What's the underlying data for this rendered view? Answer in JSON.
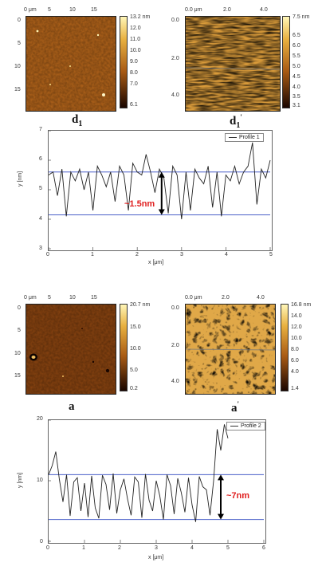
{
  "colors": {
    "afm_dark": "#2a0d00",
    "afm_mid": "#b06418",
    "afm_light": "#f6d060",
    "profile_line": "#222222",
    "ref_line": "#4a5fc8",
    "annotation": "#e02020"
  },
  "panels": {
    "d1": {
      "label_main": "d",
      "label_sub": "1",
      "x_ticks": [
        "0 μm",
        "5",
        "10",
        "15"
      ],
      "y_ticks": [
        "0",
        "5",
        "10",
        "15"
      ],
      "colorbar": [
        "13.2 nm",
        "12.0",
        "11.0",
        "10.0",
        "9.0",
        "8.0",
        "7.0",
        "6.1"
      ]
    },
    "d1p": {
      "label_main": "d",
      "label_sub": "1",
      "label_sup": "'",
      "x_ticks": [
        "0.0 μm",
        "2.0",
        "4.0"
      ],
      "y_ticks": [
        "0.0",
        "2.0",
        "4.0"
      ],
      "colorbar": [
        "7.5 nm",
        "6.5",
        "6.0",
        "5.5",
        "5.0",
        "4.5",
        "4.0",
        "3.5",
        "3.1"
      ]
    },
    "a": {
      "label_main": "a",
      "x_ticks": [
        "0 μm",
        "5",
        "10",
        "15"
      ],
      "y_ticks": [
        "0",
        "5",
        "10",
        "15"
      ],
      "colorbar": [
        "20.7 nm",
        "15.0",
        "10.0",
        "5.0",
        "0.2"
      ]
    },
    "ap": {
      "label_main": "a",
      "label_sup": "'",
      "x_ticks": [
        "0.0 μm",
        "2.0",
        "4.0"
      ],
      "y_ticks": [
        "0.0",
        "2.0",
        "4.0"
      ],
      "colorbar": [
        "16.8 nm",
        "14.0",
        "12.0",
        "10.0",
        "8.0",
        "6.0",
        "4.0",
        "1.4"
      ]
    }
  },
  "chart_data": [
    {
      "type": "line",
      "xlabel": "x [μm]",
      "ylabel": "y [nm]",
      "xlim": [
        0,
        5
      ],
      "ylim": [
        3,
        7
      ],
      "x_ticks": [
        "0",
        "1",
        "2",
        "3",
        "4",
        "5"
      ],
      "y_ticks": [
        "3",
        "4",
        "5",
        "6",
        "7"
      ],
      "annotation": "~1.5nm",
      "reference_lines_y": [
        5.6,
        4.15
      ],
      "series": [
        {
          "name": "Profile 1",
          "x": [
            0,
            0.1,
            0.2,
            0.3,
            0.4,
            0.5,
            0.6,
            0.7,
            0.8,
            0.9,
            1.0,
            1.1,
            1.2,
            1.3,
            1.4,
            1.5,
            1.6,
            1.7,
            1.8,
            1.9,
            2.0,
            2.1,
            2.2,
            2.3,
            2.4,
            2.5,
            2.6,
            2.7,
            2.8,
            2.9,
            3.0,
            3.1,
            3.2,
            3.3,
            3.4,
            3.5,
            3.6,
            3.7,
            3.8,
            3.9,
            4.0,
            4.1,
            4.2,
            4.3,
            4.4,
            4.5,
            4.6,
            4.7,
            4.8,
            4.9,
            5.0
          ],
          "y": [
            5.5,
            5.6,
            4.8,
            5.7,
            4.1,
            5.6,
            5.3,
            5.7,
            5.0,
            5.6,
            4.3,
            5.8,
            5.5,
            5.1,
            5.6,
            4.6,
            5.8,
            5.5,
            4.3,
            5.9,
            5.6,
            5.5,
            6.2,
            5.6,
            4.9,
            5.7,
            5.4,
            4.2,
            5.8,
            5.5,
            4.0,
            5.6,
            4.3,
            5.7,
            5.4,
            5.2,
            5.8,
            4.4,
            5.6,
            4.1,
            5.5,
            5.3,
            5.8,
            5.2,
            5.6,
            5.8,
            6.6,
            4.5,
            5.7,
            5.4,
            6.0
          ]
        }
      ]
    },
    {
      "type": "line",
      "xlabel": "x [μm]",
      "ylabel": "y [nm]",
      "xlim": [
        0,
        6
      ],
      "ylim": [
        0,
        20
      ],
      "x_ticks": [
        "0",
        "1",
        "2",
        "3",
        "4",
        "5",
        "6"
      ],
      "y_ticks": [
        "0",
        "10",
        "20"
      ],
      "annotation": "~7nm",
      "reference_lines_y": [
        11.0,
        3.6
      ],
      "series": [
        {
          "name": "Profile 2",
          "x": [
            0,
            0.1,
            0.2,
            0.3,
            0.4,
            0.5,
            0.6,
            0.7,
            0.8,
            0.9,
            1.0,
            1.1,
            1.2,
            1.3,
            1.4,
            1.5,
            1.6,
            1.7,
            1.8,
            1.9,
            2.0,
            2.1,
            2.2,
            2.3,
            2.4,
            2.5,
            2.6,
            2.7,
            2.8,
            2.9,
            3.0,
            3.1,
            3.2,
            3.3,
            3.4,
            3.5,
            3.6,
            3.7,
            3.8,
            3.9,
            4.0,
            4.1,
            4.2,
            4.3,
            4.4,
            4.5,
            4.6,
            4.7,
            4.8,
            4.9,
            5.0
          ],
          "y": [
            11.0,
            12.5,
            14.8,
            10.2,
            6.5,
            11.0,
            4.2,
            9.8,
            10.5,
            5.0,
            9.6,
            4.0,
            10.8,
            5.5,
            3.8,
            10.9,
            9.4,
            5.2,
            11.2,
            4.6,
            8.5,
            10.3,
            7.0,
            4.3,
            10.6,
            9.8,
            3.9,
            11.1,
            6.8,
            5.0,
            10.0,
            7.5,
            3.6,
            11.0,
            9.2,
            4.5,
            10.4,
            8.0,
            4.8,
            10.5,
            6.0,
            3.2,
            10.7,
            9.0,
            8.5,
            4.3,
            10.0,
            18.5,
            15.0,
            19.3,
            17.0
          ]
        }
      ]
    }
  ]
}
